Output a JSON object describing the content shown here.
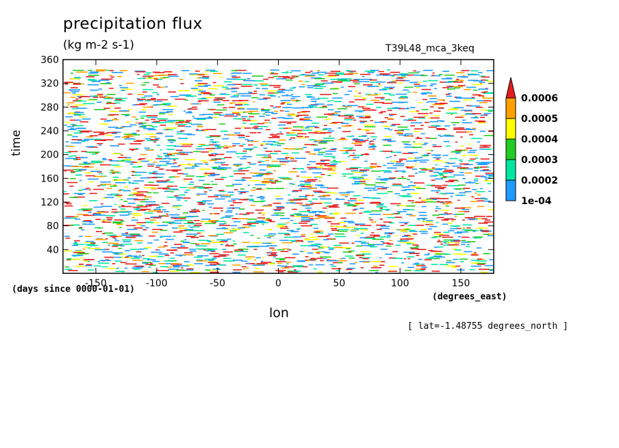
{
  "chart_data": {
    "type": "heatmap",
    "title": "precipitation flux",
    "subtitle": "(kg m-2 s-1)",
    "annotation_right": "T39L48_mca_3keq",
    "xlabel": "lon",
    "xunits": "(degrees_east)",
    "ylabel": "time",
    "yunits": "(days since 0000-01-01)",
    "footnote": "[ lat=-1.48755 degrees_north ]",
    "xlim": [
      -177,
      177
    ],
    "ylim": [
      0,
      360
    ],
    "xticks": [
      -150,
      -100,
      -50,
      0,
      50,
      100,
      150
    ],
    "xtick_labels": [
      "-150",
      "-100",
      "-50",
      "0",
      "50",
      "100",
      "150"
    ],
    "yticks": [
      40,
      80,
      120,
      160,
      200,
      240,
      280,
      320,
      360
    ],
    "ytick_labels": [
      "40",
      "80",
      "120",
      "160",
      "200",
      "240",
      "280",
      "320",
      "360"
    ],
    "colorbar": {
      "levels": [
        0.0001,
        0.0002,
        0.0003,
        0.0004,
        0.0005,
        0.0006
      ],
      "labels": [
        "1e-04",
        "0.0002",
        "0.0003",
        "0.0004",
        "0.0005",
        "0.0006"
      ],
      "colors": [
        "#1e9bff",
        "#00e6a0",
        "#22cc22",
        "#ffff00",
        "#ffa000",
        "#e61e1e"
      ],
      "extend": "max",
      "placement": "right"
    },
    "field_description_colors": [
      "#1e9bff",
      "#00e6a0",
      "#22cc22",
      "#ffff00",
      "#ffa000",
      "#e61e1e"
    ]
  }
}
